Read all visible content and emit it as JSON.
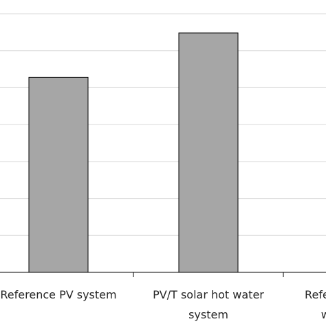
{
  "chart_data": {
    "type": "bar",
    "categories": [
      [
        "Reference PV system"
      ],
      [
        "PV/T solar hot water",
        "system"
      ],
      [
        "Reference solar hot",
        "water system"
      ]
    ],
    "values": [
      5.28,
      6.48,
      null
    ],
    "title": "",
    "xlabel": "",
    "ylabel": "",
    "ylim": [
      0,
      7
    ],
    "y_tick_count": 7,
    "grid": true,
    "legend": "none",
    "colors": {
      "bar_fill": "#a6a6a6",
      "bar_stroke": "#000000",
      "grid": "#d9d9d9",
      "axis": "#000000",
      "label": "#262626"
    }
  }
}
